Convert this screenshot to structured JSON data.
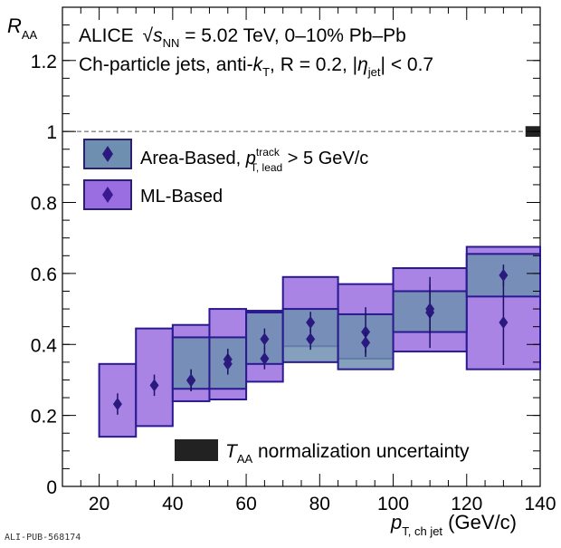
{
  "chart_data": {
    "type": "bar",
    "title_lines": {
      "experiment": "ALICE",
      "energy_prefix": "√",
      "energy_symbol": "s",
      "energy_sub": "NN",
      "energy_rest": " = 5.02 TeV, 0–10% Pb–Pb",
      "jets_prefix": "Ch-particle jets, anti-",
      "jets_k": "k",
      "jets_k_sub": "T",
      "jets_r": ", R = 0.2, |",
      "jets_eta": "η",
      "jets_eta_sub": "jet",
      "jets_tail": "| < 0.7"
    },
    "ylabel": "R",
    "ylabel_sub": "AA",
    "xlabel": "p",
    "xlabel_sub": "T, ch jet",
    "xlabel_unit": " (GeV/c)",
    "xlim": [
      10,
      140
    ],
    "ylim": [
      0,
      1.35
    ],
    "x_ticks": [
      20,
      40,
      60,
      80,
      100,
      120,
      140
    ],
    "y_ticks": [
      0,
      0.2,
      0.4,
      0.6,
      0.8,
      1,
      1.2
    ],
    "reference_line": 1,
    "legend": {
      "area_prefix": "Area-Based, ",
      "area_p": "p",
      "area_sup": "track",
      "area_sub": "T, lead",
      "area_tail": " > 5 GeV/c",
      "ml": "ML-Based"
    },
    "taa_label": {
      "t": "T",
      "sub": "AA",
      "rest": " normalization uncertainty"
    },
    "series": [
      {
        "name": "Area-Based",
        "color": "#5a4aa8",
        "fill": "#6f8fb0",
        "points": [
          {
            "xlow": 40,
            "xhigh": 50,
            "y": 0.3,
            "sys_low": 0.275,
            "sys_high": 0.42,
            "stat": 0.015
          },
          {
            "xlow": 50,
            "xhigh": 60,
            "y": 0.345,
            "sys_low": 0.275,
            "sys_high": 0.42,
            "stat": 0.015
          },
          {
            "xlow": 60,
            "xhigh": 70,
            "y": 0.415,
            "sys_low": 0.345,
            "sys_high": 0.49,
            "stat": 0.015
          },
          {
            "xlow": 70,
            "xhigh": 85,
            "y": 0.415,
            "sys_low": 0.35,
            "sys_high": 0.5,
            "stat": 0.015
          },
          {
            "xlow": 85,
            "xhigh": 100,
            "y": 0.405,
            "sys_low": 0.33,
            "sys_high": 0.485,
            "stat": 0.015
          },
          {
            "xlow": 100,
            "xhigh": 120,
            "y": 0.5,
            "sys_low": 0.435,
            "sys_high": 0.55,
            "stat": 0.035
          },
          {
            "xlow": 120,
            "xhigh": 140,
            "y": 0.595,
            "sys_low": 0.535,
            "sys_high": 0.655,
            "stat": 0.015
          }
        ]
      },
      {
        "name": "ML-Based",
        "color": "#4a2aa0",
        "fill": "#9a6ee0",
        "points": [
          {
            "xlow": 20,
            "xhigh": 30,
            "y": 0.232,
            "sys_low": 0.14,
            "sys_high": 0.345,
            "stat": 0.015
          },
          {
            "xlow": 30,
            "xhigh": 40,
            "y": 0.285,
            "sys_low": 0.17,
            "sys_high": 0.445,
            "stat": 0.015
          },
          {
            "xlow": 40,
            "xhigh": 50,
            "y": 0.298,
            "sys_low": 0.24,
            "sys_high": 0.455,
            "stat": 0.015
          },
          {
            "xlow": 50,
            "xhigh": 60,
            "y": 0.358,
            "sys_low": 0.245,
            "sys_high": 0.5,
            "stat": 0.015
          },
          {
            "xlow": 60,
            "xhigh": 70,
            "y": 0.36,
            "sys_low": 0.295,
            "sys_high": 0.495,
            "stat": 0.015
          },
          {
            "xlow": 70,
            "xhigh": 85,
            "y": 0.462,
            "sys_low": 0.395,
            "sys_high": 0.59,
            "stat": 0.015
          },
          {
            "xlow": 85,
            "xhigh": 100,
            "y": 0.435,
            "sys_low": 0.36,
            "sys_high": 0.57,
            "stat": 0.035
          },
          {
            "xlow": 100,
            "xhigh": 120,
            "y": 0.49,
            "sys_low": 0.38,
            "sys_high": 0.615,
            "stat": 0.05
          },
          {
            "xlow": 120,
            "xhigh": 140,
            "y": 0.462,
            "sys_low": 0.33,
            "sys_high": 0.675,
            "stat": 0.06
          }
        ]
      }
    ],
    "taa_uncertainty": {
      "low": 0.985,
      "high": 1.015
    }
  },
  "footer": {
    "pub_id": "ALI-PUB-568174"
  }
}
